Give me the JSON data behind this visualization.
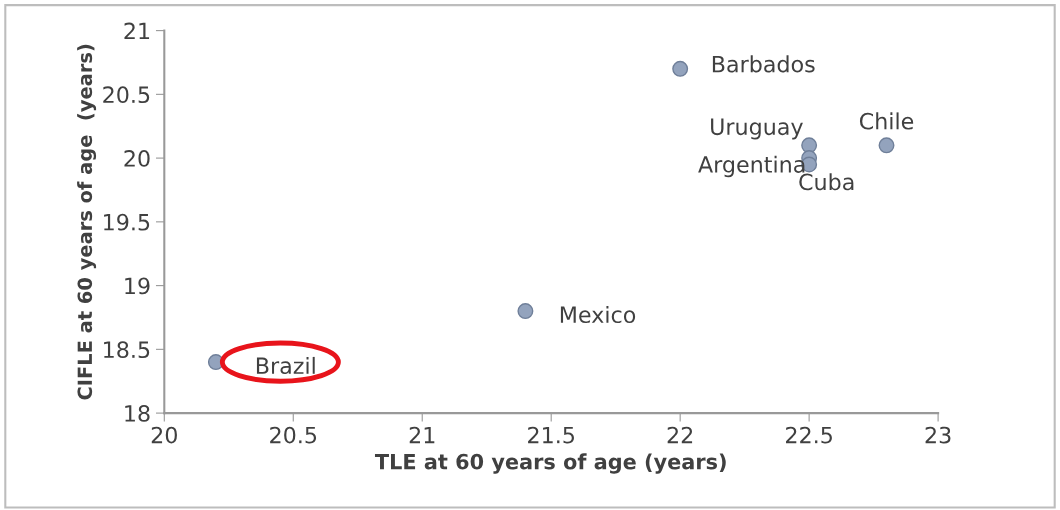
{
  "chart_data": {
    "type": "scatter",
    "xlabel": "TLE at 60 years of age (years)",
    "ylabel": "CIFLE at 60 years of age  (years)",
    "series": [
      {
        "color": "#93a3bd",
        "x": [
          20.2,
          21.4,
          22.0,
          22.5,
          22.5,
          22.5,
          22.8
        ],
        "values": [
          18.4,
          18.8,
          20.7,
          20.1,
          20.0,
          19.95,
          20.1
        ]
      }
    ],
    "annotations": [
      {
        "text": "Brazil",
        "x": 20.2,
        "y": 18.4
      },
      {
        "text": "Mexico",
        "x": 21.4,
        "y": 18.8
      },
      {
        "text": "Barbados",
        "x": 22.0,
        "y": 20.7
      },
      {
        "text": "Uruguay",
        "x": 22.5,
        "y": 20.1
      },
      {
        "text": "Argentina",
        "x": 22.5,
        "y": 20.0
      },
      {
        "text": "Cuba",
        "x": 22.5,
        "y": 19.95
      },
      {
        "text": "Chile",
        "x": 22.8,
        "y": 20.1
      }
    ],
    "xlim": [
      20,
      23
    ],
    "xticks": [
      20,
      20.5,
      21,
      21.5,
      22,
      22.5,
      23
    ],
    "ylim": [
      18,
      21
    ],
    "yticks": [
      18,
      18.5,
      19,
      19.5,
      20,
      20.5,
      21
    ],
    "grid": false,
    "legend": false,
    "marker": "circle"
  }
}
